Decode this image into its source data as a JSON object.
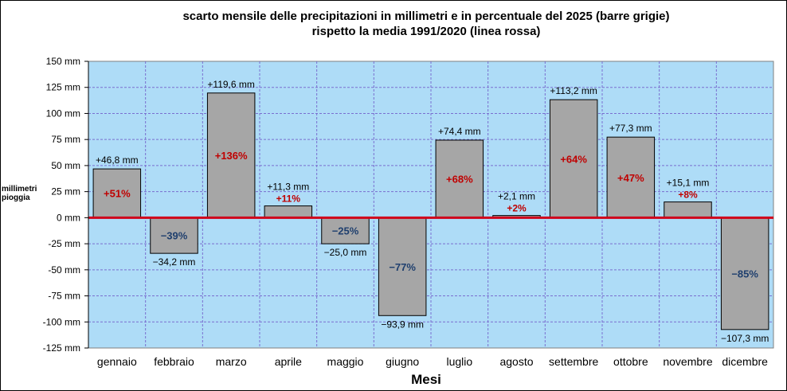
{
  "chart_data": {
    "type": "bar",
    "title": "scarto mensile delle precipitazioni in millimetri e in percentuale del 2025 (barre grigie)",
    "subtitle": "rispetto la media 1991/2020 (linea rossa)",
    "xlabel": "Mesi",
    "ylabel": "millimetri pioggia",
    "ylim": [
      -125,
      150
    ],
    "y_ticks": [
      150,
      125,
      100,
      75,
      50,
      25,
      0,
      -25,
      -50,
      -75,
      -100,
      -125
    ],
    "y_tick_unit": "mm",
    "grid": true,
    "categories": [
      "gennaio",
      "febbraio",
      "marzo",
      "aprile",
      "maggio",
      "giugno",
      "luglio",
      "agosto",
      "settembre",
      "ottobre",
      "novembre",
      "dicembre"
    ],
    "values": [
      46.8,
      -34.2,
      119.6,
      11.3,
      -25.0,
      -93.9,
      74.4,
      2.1,
      113.2,
      77.3,
      15.1,
      -107.3
    ],
    "value_labels": [
      "+46,8 mm",
      "−34,2 mm",
      "+119,6 mm",
      "+11,3 mm",
      "−25,0 mm",
      "−93,9 mm",
      "+74,4 mm",
      "+2,1 mm",
      "+113,2 mm",
      "+77,3 mm",
      "+15,1 mm",
      "−107,3 mm"
    ],
    "percent_labels": [
      "+51%",
      "−39%",
      "+136%",
      "+11%",
      "−25%",
      "−77%",
      "+68%",
      "+2%",
      "+64%",
      "+47%",
      "+8%",
      "−85%"
    ],
    "colors": {
      "plot_background": "#aedcf7",
      "bar_fill": "#a6a6a6",
      "bar_stroke": "#000000",
      "grid": "#7a6fd0",
      "baseline": "#d0001a",
      "positive_percent": "#c00000",
      "negative_percent": "#1f3f6e"
    }
  }
}
